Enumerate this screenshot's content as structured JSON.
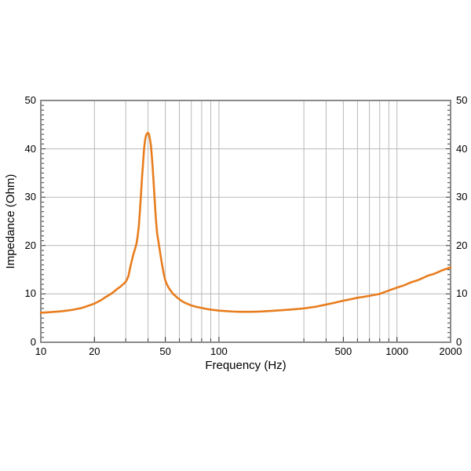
{
  "chart_data": {
    "type": "line",
    "title": "",
    "xlabel": "Frequency (Hz)",
    "ylabel": "Impedance (Ohm)",
    "x_scale": "log",
    "y_scale": "linear",
    "xlim": [
      10,
      2000
    ],
    "ylim": [
      0,
      50
    ],
    "x_tick_labels": [
      "10",
      "20",
      "50",
      "100",
      "500",
      "1000",
      "2000"
    ],
    "x_tick_values": [
      10,
      20,
      50,
      100,
      500,
      1000,
      2000
    ],
    "x_minor_ticks": [
      20,
      30,
      40,
      50,
      60,
      70,
      80,
      90,
      100,
      300,
      400,
      500,
      600,
      700,
      800,
      900,
      1000
    ],
    "y_tick_labels": [
      "0",
      "10",
      "20",
      "30",
      "40",
      "50"
    ],
    "y_tick_values": [
      0,
      10,
      20,
      30,
      40,
      50
    ],
    "y_minor_step": 1,
    "grid": {
      "vertical_at": [
        20,
        30,
        40,
        50,
        60,
        70,
        80,
        90,
        100,
        300,
        400,
        500,
        600,
        700,
        800,
        900,
        1000
      ],
      "horizontal_at": [
        10,
        20,
        30,
        40
      ],
      "note": "no gridline or tick at 200 Hz; no minor lines between 1000 and 2000"
    },
    "legend": "none",
    "series": [
      {
        "name": "impedance",
        "color": "#e87d1e",
        "peak": {
          "frequency_hz": 40,
          "impedance_ohm": 43.3
        },
        "points": [
          [
            10,
            6.1
          ],
          [
            11,
            6.2
          ],
          [
            12,
            6.3
          ],
          [
            13,
            6.4
          ],
          [
            14,
            6.55
          ],
          [
            15,
            6.7
          ],
          [
            16,
            6.9
          ],
          [
            17,
            7.1
          ],
          [
            18,
            7.4
          ],
          [
            19,
            7.7
          ],
          [
            20,
            8.0
          ],
          [
            21,
            8.4
          ],
          [
            22,
            8.8
          ],
          [
            23,
            9.3
          ],
          [
            24,
            9.7
          ],
          [
            25,
            10.1
          ],
          [
            26,
            10.6
          ],
          [
            27,
            11.1
          ],
          [
            28,
            11.5
          ],
          [
            29,
            12.0
          ],
          [
            30,
            12.5
          ],
          [
            31,
            13.6
          ],
          [
            32,
            16.0
          ],
          [
            33,
            18.0
          ],
          [
            34,
            19.6
          ],
          [
            34.5,
            20.5
          ],
          [
            35,
            22.0
          ],
          [
            35.5,
            24.0
          ],
          [
            36,
            27.0
          ],
          [
            36.5,
            30.5
          ],
          [
            37,
            34.0
          ],
          [
            37.5,
            37.0
          ],
          [
            38,
            40.0
          ],
          [
            38.5,
            41.8
          ],
          [
            39,
            42.8
          ],
          [
            39.5,
            43.2
          ],
          [
            40,
            43.3
          ],
          [
            40.5,
            43.0
          ],
          [
            41,
            42.0
          ],
          [
            41.5,
            40.8
          ],
          [
            42,
            38.5
          ],
          [
            42.5,
            36.0
          ],
          [
            43,
            33.0
          ],
          [
            43.5,
            30.0
          ],
          [
            44,
            27.0
          ],
          [
            44.5,
            24.5
          ],
          [
            45,
            22.5
          ],
          [
            46,
            20.3
          ],
          [
            47,
            18.0
          ],
          [
            48,
            16.0
          ],
          [
            49,
            14.2
          ],
          [
            50,
            12.8
          ],
          [
            51,
            12.0
          ],
          [
            52,
            11.4
          ],
          [
            53,
            10.9
          ],
          [
            54,
            10.5
          ],
          [
            55,
            10.1
          ],
          [
            56,
            9.8
          ],
          [
            57,
            9.6
          ],
          [
            58,
            9.3
          ],
          [
            60,
            8.9
          ],
          [
            62,
            8.5
          ],
          [
            65,
            8.1
          ],
          [
            68,
            7.8
          ],
          [
            70,
            7.6
          ],
          [
            75,
            7.3
          ],
          [
            80,
            7.1
          ],
          [
            85,
            6.9
          ],
          [
            90,
            6.75
          ],
          [
            95,
            6.65
          ],
          [
            100,
            6.55
          ],
          [
            110,
            6.45
          ],
          [
            120,
            6.35
          ],
          [
            130,
            6.3
          ],
          [
            140,
            6.3
          ],
          [
            150,
            6.3
          ],
          [
            160,
            6.32
          ],
          [
            170,
            6.35
          ],
          [
            180,
            6.4
          ],
          [
            200,
            6.5
          ],
          [
            220,
            6.6
          ],
          [
            250,
            6.75
          ],
          [
            280,
            6.9
          ],
          [
            300,
            7.0
          ],
          [
            350,
            7.35
          ],
          [
            400,
            7.8
          ],
          [
            450,
            8.2
          ],
          [
            500,
            8.6
          ],
          [
            550,
            8.9
          ],
          [
            600,
            9.2
          ],
          [
            650,
            9.4
          ],
          [
            700,
            9.6
          ],
          [
            750,
            9.8
          ],
          [
            800,
            10.0
          ],
          [
            900,
            10.7
          ],
          [
            1000,
            11.3
          ],
          [
            1100,
            11.8
          ],
          [
            1200,
            12.4
          ],
          [
            1300,
            12.8
          ],
          [
            1400,
            13.3
          ],
          [
            1500,
            13.8
          ],
          [
            1600,
            14.1
          ],
          [
            1700,
            14.5
          ],
          [
            1800,
            14.9
          ],
          [
            1900,
            15.2
          ],
          [
            2000,
            15.5
          ]
        ]
      }
    ]
  },
  "style": {
    "background": "#ffffff",
    "grid_color": "#b9b9b9",
    "axis_color": "#8a8a8a",
    "tick_color": "#3a3a3a",
    "text_color": "#000000",
    "curve_color": "#e87d1e"
  }
}
